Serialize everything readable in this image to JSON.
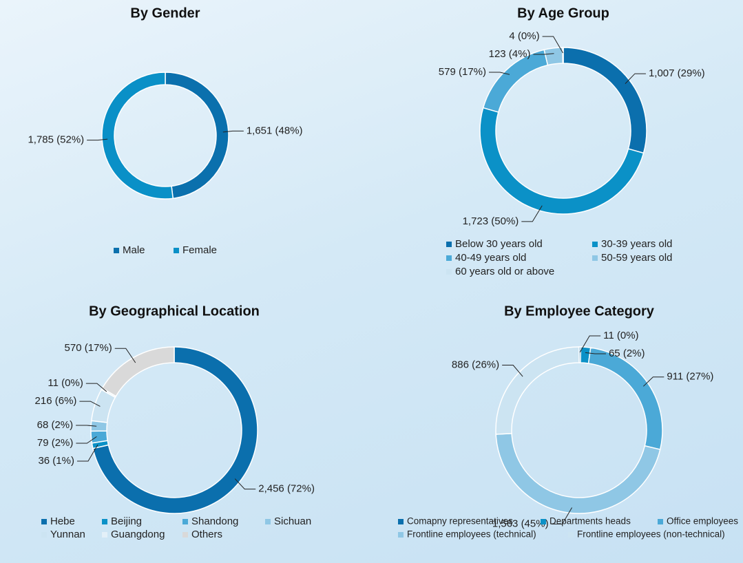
{
  "chart_data": [
    {
      "type": "donut",
      "title": "By Gender",
      "categories": [
        "Male",
        "Female"
      ],
      "values": [
        1651,
        1785
      ],
      "value_labels": [
        "1,651 (48%)",
        "1,785 (52%)"
      ],
      "colors": [
        "#0b70ad",
        "#0a90c7"
      ],
      "legend": "bottom"
    },
    {
      "type": "donut",
      "title": "By Age Group",
      "categories": [
        "Below 30 years old",
        "30-39 years old",
        "40-49 years old",
        "50-59 years old",
        "60 years old or above"
      ],
      "values": [
        1007,
        1723,
        579,
        123,
        4
      ],
      "value_labels": [
        "1,007 (29%)",
        "1,723 (50%)",
        "579 (17%)",
        "123 (4%)",
        "4 (0%)"
      ],
      "colors": [
        "#0b6fad",
        "#0b91c7",
        "#4ba9d7",
        "#8fc7e5",
        "#cce4f2"
      ],
      "legend": "bottom"
    },
    {
      "type": "donut",
      "title": "By Geographical Location",
      "categories": [
        "Hebe",
        "Beijing",
        "Shandong",
        "Sichuan",
        "Yunnan",
        "Guangdong",
        "Others"
      ],
      "values": [
        2456,
        36,
        79,
        68,
        216,
        11,
        570
      ],
      "value_labels": [
        "2,456 (72%)",
        "36 (1%)",
        "79 (2%)",
        "68 (2%)",
        "216 (6%)",
        "11 (0%)",
        "570 (17%)"
      ],
      "colors": [
        "#0b6fad",
        "#0b91c7",
        "#4ba9d7",
        "#8fc7e5",
        "#cce4f2",
        "#e3f0f8",
        "#d9d9d9"
      ],
      "legend": "bottom"
    },
    {
      "type": "donut",
      "title": "By Employee Category",
      "categories": [
        "Comapny representatives",
        "Departments heads",
        "Office employees",
        "Frontline employees (technical)",
        "Frontline employees (non-technical)"
      ],
      "values": [
        11,
        65,
        911,
        1563,
        886
      ],
      "value_labels": [
        "11 (0%)",
        "65 (2%)",
        "911 (27%)",
        "1,563 (45%)",
        "886 (26%)"
      ],
      "colors": [
        "#0b6fad",
        "#0b91c7",
        "#4ba9d7",
        "#8fc7e5",
        "#cce4f2"
      ],
      "legend": "bottom"
    }
  ]
}
